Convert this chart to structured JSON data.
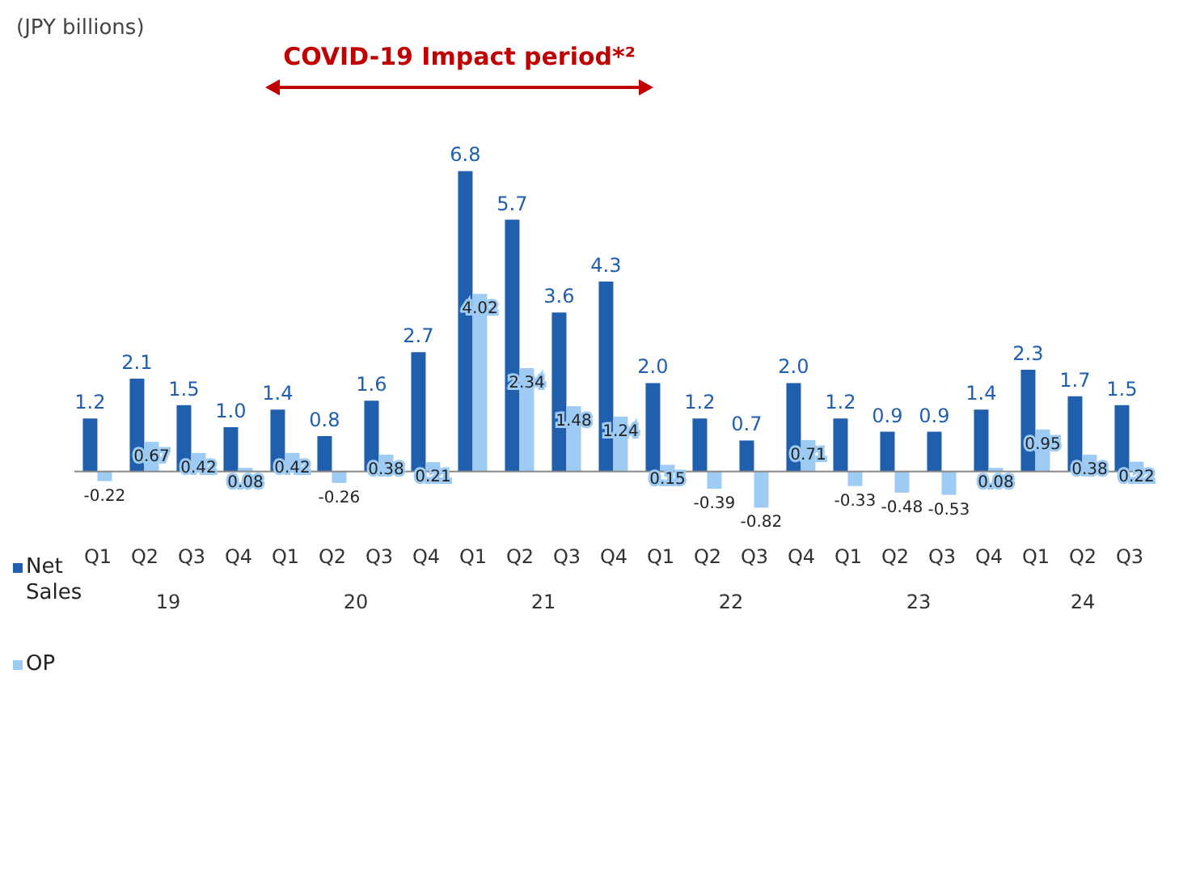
{
  "chart_data": {
    "type": "bar",
    "categories": [
      "Q1",
      "Q2",
      "Q3",
      "Q4",
      "Q1",
      "Q2",
      "Q3",
      "Q4",
      "Q1",
      "Q2",
      "Q3",
      "Q4",
      "Q1",
      "Q2",
      "Q3",
      "Q4",
      "Q1",
      "Q2",
      "Q3",
      "Q4",
      "Q1",
      "Q2",
      "Q3"
    ],
    "series": [
      {
        "name": "Net Sales",
        "color": "#1f5fad",
        "values": [
          1.2,
          2.1,
          1.5,
          1.0,
          1.4,
          0.8,
          1.6,
          2.7,
          6.8,
          5.7,
          3.6,
          4.3,
          2.0,
          1.2,
          0.7,
          2.0,
          1.2,
          0.9,
          0.9,
          1.4,
          2.3,
          1.7,
          1.5
        ],
        "value_labels": [
          "1.2",
          "2.1",
          "1.5",
          "1.0",
          "1.4",
          "0.8",
          "1.6",
          "2.7",
          "6.8",
          "5.7",
          "3.6",
          "4.3",
          "2.0",
          "1.2",
          "0.7",
          "2.0",
          "1.2",
          "0.9",
          "0.9",
          "1.4",
          "2.3",
          "1.7",
          "1.5"
        ]
      },
      {
        "name": "OP",
        "color": "#9ecbf3",
        "values": [
          -0.22,
          0.67,
          0.42,
          0.08,
          0.42,
          -0.26,
          0.38,
          0.21,
          4.02,
          2.34,
          1.48,
          1.24,
          0.15,
          -0.39,
          -0.82,
          0.71,
          -0.33,
          -0.48,
          -0.53,
          0.08,
          0.95,
          0.38,
          0.22
        ]
      }
    ],
    "data_labels": true,
    "legend": "left",
    "annotations": [
      "(JPY billions)",
      "COVID-19 Impact period*²",
      "19",
      "20",
      "21",
      "22",
      "23",
      "24"
    ]
  }
}
